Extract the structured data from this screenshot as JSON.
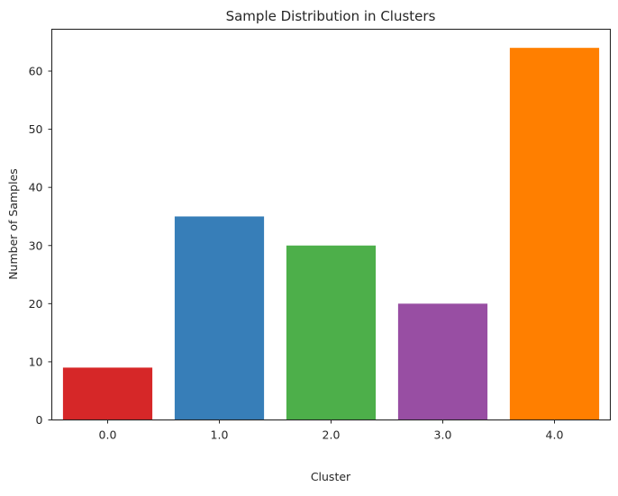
{
  "chart_data": {
    "type": "bar",
    "title": "Sample Distribution in Clusters",
    "xlabel": "Cluster",
    "ylabel": "Number of Samples",
    "categories": [
      "0.0",
      "1.0",
      "2.0",
      "3.0",
      "4.0"
    ],
    "values": [
      9,
      35,
      30,
      20,
      64
    ],
    "colors": [
      "#d62728",
      "#377eb8",
      "#4daf4a",
      "#984ea3",
      "#ff7f00"
    ],
    "ylim": [
      0,
      67.2
    ],
    "yticks": [
      "0",
      "10",
      "20",
      "30",
      "40",
      "50",
      "60"
    ],
    "grid": false,
    "legend": false
  }
}
